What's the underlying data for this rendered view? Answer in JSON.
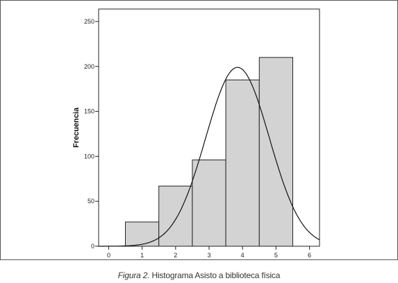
{
  "chart_data": {
    "type": "bar",
    "subtype": "histogram",
    "ylabel": "Frecuencia",
    "xlabel": "",
    "xlim": [
      -0.3,
      6.3
    ],
    "ylim": [
      0,
      250
    ],
    "x_ticks": [
      0,
      1,
      2,
      3,
      4,
      5,
      6
    ],
    "y_ticks": [
      0,
      50,
      100,
      150,
      200,
      250
    ],
    "bins": [
      {
        "from": 0.5,
        "to": 1.5,
        "value": 27
      },
      {
        "from": 1.5,
        "to": 2.5,
        "value": 67
      },
      {
        "from": 2.5,
        "to": 3.5,
        "value": 96
      },
      {
        "from": 3.5,
        "to": 4.5,
        "value": 185
      },
      {
        "from": 4.5,
        "to": 5.5,
        "value": 210
      }
    ],
    "normal_curve": {
      "mean": 3.85,
      "sd": 0.95,
      "peak": 199
    },
    "bar_fill": "#d3d3d3",
    "bar_stroke": "#222222",
    "grid": false
  },
  "caption": {
    "label": "Figura 2.",
    "text": "Histograma Asisto a biblioteca física"
  }
}
